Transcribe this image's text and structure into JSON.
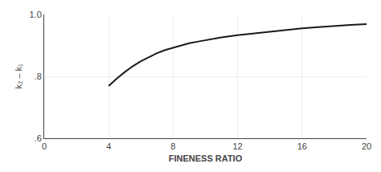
{
  "chart_data": {
    "type": "line",
    "xlabel": "FINENESS RATIO",
    "ylabel": "k₂ – k₁",
    "x": [
      4.0,
      4.5,
      5.0,
      5.5,
      6.0,
      6.5,
      7.0,
      7.5,
      8.0,
      8.5,
      9.0,
      9.5,
      10.0,
      11.0,
      12.0,
      13.0,
      14.0,
      15.0,
      16.0,
      17.0,
      18.0,
      19.0,
      20.0
    ],
    "values": [
      0.769,
      0.793,
      0.814,
      0.833,
      0.849,
      0.863,
      0.875,
      0.885,
      0.893,
      0.9,
      0.907,
      0.912,
      0.917,
      0.926,
      0.933,
      0.939,
      0.945,
      0.95,
      0.955,
      0.959,
      0.963,
      0.966,
      0.969
    ],
    "color": "#1a1a1a",
    "xlim": [
      0,
      20
    ],
    "ylim": [
      0.6,
      1.0
    ],
    "xticks": [
      0,
      4,
      8,
      12,
      16,
      20
    ],
    "yticks": [
      {
        "value": 0.6,
        "label": ".6"
      },
      {
        "value": 0.8,
        "label": ".8"
      },
      {
        "value": 1.0,
        "label": "1.0"
      }
    ],
    "grid": true
  }
}
